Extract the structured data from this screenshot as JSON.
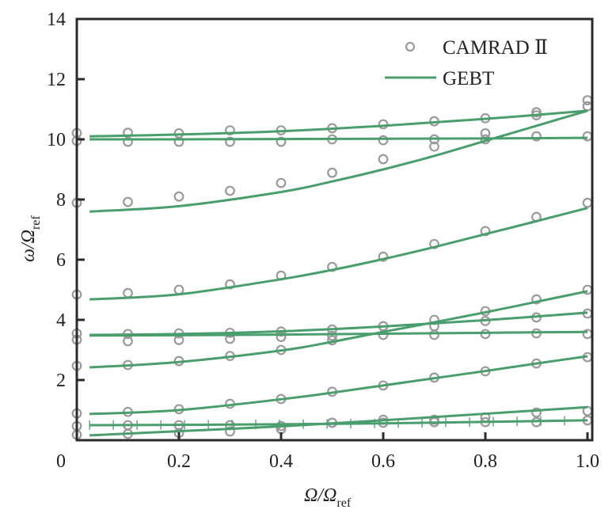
{
  "chart_data": {
    "type": "line",
    "title": "",
    "xlabel": {
      "main": "Ω/Ω",
      "sub": "ref"
    },
    "ylabel": {
      "main": "ω/Ω",
      "sub": "ref"
    },
    "xlim": [
      0,
      1.0
    ],
    "ylim": [
      0,
      14
    ],
    "grid": false,
    "legend_position": "top-right",
    "x_ticks": [
      {
        "value": 0,
        "label": "0"
      },
      {
        "value": 0.2,
        "label": "0.2"
      },
      {
        "value": 0.4,
        "label": "0.4"
      },
      {
        "value": 0.6,
        "label": "0.6"
      },
      {
        "value": 0.8,
        "label": "0.8"
      },
      {
        "value": 1.0,
        "label": "1.0"
      }
    ],
    "y_ticks": [
      {
        "value": 2,
        "label": "2"
      },
      {
        "value": 4,
        "label": "4"
      },
      {
        "value": 6,
        "label": "6"
      },
      {
        "value": 8,
        "label": "8"
      },
      {
        "value": 10,
        "label": "10"
      },
      {
        "value": 12,
        "label": "12"
      },
      {
        "value": 14,
        "label": "14"
      }
    ],
    "legend": [
      {
        "name": "CAMRAD Ⅱ",
        "marker": "circle",
        "color": "#9a9a9a"
      },
      {
        "name": "GEBT",
        "marker": "line",
        "color": "#4a9e6e"
      }
    ],
    "colors": {
      "camrad": "#9a9a9a",
      "gebt": "#4a9e6e",
      "axis": "#2b2b2b"
    },
    "gebt_series": [
      {
        "name": "GEBT mode 1",
        "x": [
          0.025,
          0.2,
          0.4,
          0.6,
          0.8,
          1.0
        ],
        "y": [
          10.1,
          10.16,
          10.27,
          10.45,
          10.68,
          10.95
        ]
      },
      {
        "name": "GEBT mode 2",
        "x": [
          0.025,
          0.2,
          0.4,
          0.6,
          0.8,
          1.0
        ],
        "y": [
          10.0,
          10.0,
          10.01,
          10.02,
          10.03,
          10.05
        ]
      },
      {
        "name": "GEBT mode 3",
        "x": [
          0.025,
          0.2,
          0.4,
          0.5,
          0.6,
          0.7,
          0.8,
          0.9,
          1.0
        ],
        "y": [
          7.6,
          7.78,
          8.25,
          8.6,
          9.0,
          9.45,
          9.95,
          10.45,
          10.95
        ]
      },
      {
        "name": "GEBT mode 4",
        "x": [
          0.025,
          0.2,
          0.4,
          0.5,
          0.6,
          0.7,
          0.8,
          0.9,
          1.0
        ],
        "y": [
          4.68,
          4.85,
          5.35,
          5.66,
          6.02,
          6.42,
          6.85,
          7.28,
          7.72
        ]
      },
      {
        "name": "GEBT mode 5",
        "x": [
          0.025,
          0.2,
          0.4,
          0.6,
          0.8,
          1.0
        ],
        "y": [
          3.5,
          3.53,
          3.62,
          3.78,
          3.99,
          4.24
        ]
      },
      {
        "name": "GEBT mode 6",
        "x": [
          0.025,
          0.2,
          0.4,
          0.6,
          0.8,
          1.0
        ],
        "y": [
          3.48,
          3.49,
          3.51,
          3.54,
          3.57,
          3.6
        ]
      },
      {
        "name": "GEBT mode 7",
        "x": [
          0.025,
          0.2,
          0.4,
          0.5,
          0.6,
          0.7,
          0.8,
          0.9,
          1.0
        ],
        "y": [
          2.42,
          2.6,
          2.98,
          3.27,
          3.6,
          3.92,
          4.25,
          4.6,
          4.95
        ]
      },
      {
        "name": "GEBT mode 8",
        "x": [
          0.025,
          0.2,
          0.4,
          0.5,
          0.6,
          0.7,
          0.8,
          0.9,
          1.0
        ],
        "y": [
          0.87,
          1.0,
          1.36,
          1.58,
          1.82,
          2.06,
          2.3,
          2.55,
          2.79
        ]
      },
      {
        "name": "GEBT mode 9",
        "x": [
          0.025,
          0.2,
          0.4,
          0.6,
          0.8,
          1.0
        ],
        "y": [
          0.5,
          0.51,
          0.53,
          0.56,
          0.61,
          0.66
        ],
        "marker": "plus"
      },
      {
        "name": "GEBT mode 10",
        "x": [
          0.025,
          0.2,
          0.4,
          0.6,
          0.8,
          1.0
        ],
        "y": [
          0.16,
          0.3,
          0.46,
          0.66,
          0.88,
          1.1
        ]
      }
    ],
    "camrad_points": {
      "x": [
        0,
        0.1,
        0.2,
        0.3,
        0.4,
        0.5,
        0.6,
        0.7,
        0.8,
        0.9,
        1.0
      ],
      "series": [
        {
          "name": "CAMRAD mode 1",
          "y": [
            10.21,
            10.22,
            10.2,
            10.3,
            10.3,
            10.37,
            10.5,
            10.6,
            10.7,
            10.9,
            11.3
          ]
        },
        {
          "name": "CAMRAD mode 2",
          "y": [
            9.95,
            9.92,
            9.92,
            9.92,
            9.92,
            10.0,
            9.97,
            10.0,
            10.0,
            10.1,
            10.1
          ]
        },
        {
          "name": "CAMRAD mode 3",
          "y": [
            7.89,
            7.92,
            8.1,
            8.29,
            8.55,
            8.89,
            9.34,
            9.76,
            10.2,
            10.8,
            11.1
          ]
        },
        {
          "name": "CAMRAD mode 4",
          "y": [
            4.84,
            4.89,
            5.0,
            5.18,
            5.47,
            5.76,
            6.1,
            6.52,
            6.95,
            7.42,
            7.89
          ]
        },
        {
          "name": "CAMRAD mode 5",
          "y": [
            3.55,
            3.53,
            3.55,
            3.57,
            3.61,
            3.68,
            3.79,
            3.79,
            3.96,
            4.08,
            4.21
          ]
        },
        {
          "name": "CAMRAD mode 6",
          "y": [
            3.34,
            3.29,
            3.33,
            3.37,
            3.43,
            3.47,
            3.5,
            3.5,
            3.53,
            3.55,
            3.53
          ]
        },
        {
          "name": "CAMRAD mode 7",
          "y": [
            2.47,
            2.5,
            2.63,
            2.8,
            3.0,
            3.32,
            3.79,
            4.0,
            4.29,
            4.68,
            5.0
          ]
        },
        {
          "name": "CAMRAD mode 8",
          "y": [
            0.89,
            0.94,
            1.03,
            1.21,
            1.37,
            1.61,
            1.82,
            2.08,
            2.29,
            2.55,
            2.76
          ]
        },
        {
          "name": "CAMRAD mode 9",
          "y": [
            0.47,
            0.5,
            0.5,
            0.5,
            0.47,
            0.58,
            0.58,
            0.6,
            0.6,
            0.6,
            0.66
          ]
        },
        {
          "name": "CAMRAD mode 10",
          "y": [
            0.18,
            0.21,
            0.24,
            0.29,
            0.37,
            0.58,
            0.68,
            0.68,
            0.76,
            0.92,
            0.97
          ]
        }
      ]
    }
  }
}
